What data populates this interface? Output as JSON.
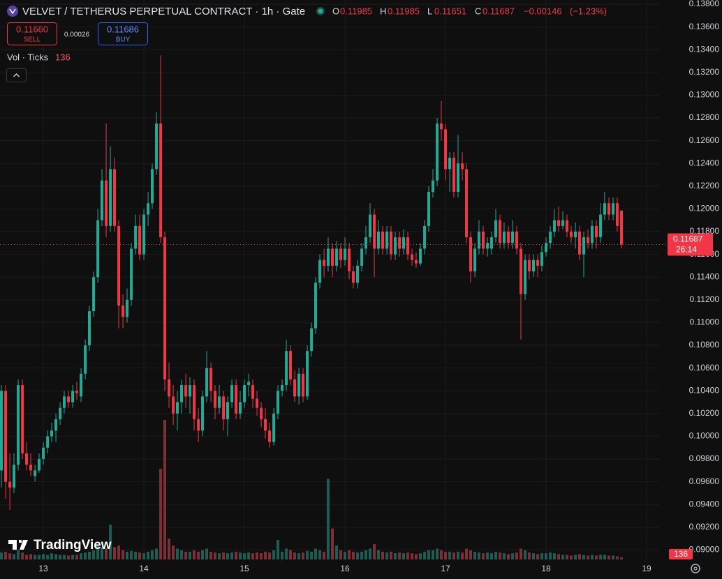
{
  "chart_data": {
    "type": "candlestick",
    "title": "VELVET / TETHERUS PERPETUAL CONTRACT · 1h · Gate",
    "ohlc_labels": [
      "O",
      "H",
      "L",
      "C"
    ],
    "change": {
      "value": -0.00146,
      "label": "−0.00146"
    },
    "change_percent": {
      "value": -1.23,
      "label": "(−1.23%)"
    },
    "sell": {
      "value": 0.1166,
      "label": "0.11660"
    },
    "sell_label": "SELL",
    "spread": 0.00026,
    "buy": 0.11686,
    "buy_label": "BUY",
    "volume_label": "Vol · Ticks",
    "countdown": "26:14",
    "brand": "TradingView",
    "colors": {
      "up": "#22ab94",
      "down": "#f23645",
      "volume_up": "#1e5c54",
      "volume_down": "#7d2f36"
    },
    "grid": true,
    "xlim": [
      12.569,
      19.132
    ],
    "ylim": [
      0.08929,
      0.13837
    ],
    "xticks": [
      13,
      14,
      15,
      16,
      17,
      18,
      19
    ],
    "yticks": [
      {
        "value": 0.138,
        "label": "0.13800"
      },
      {
        "value": 0.136,
        "label": "0.13600"
      },
      {
        "value": 0.134,
        "label": "0.13400"
      },
      {
        "value": 0.132,
        "label": "0.13200"
      },
      {
        "value": 0.13,
        "label": "0.13000"
      },
      {
        "value": 0.128,
        "label": "0.12800"
      },
      {
        "value": 0.126,
        "label": "0.12600"
      },
      {
        "value": 0.124,
        "label": "0.12400"
      },
      {
        "value": 0.122,
        "label": "0.12200"
      },
      {
        "value": 0.12,
        "label": "0.12000"
      },
      {
        "value": 0.118,
        "label": "0.11800"
      },
      {
        "value": 0.116,
        "label": "0.11600"
      },
      {
        "value": 0.114,
        "label": "0.11400"
      },
      {
        "value": 0.112,
        "label": "0.11200"
      },
      {
        "value": 0.11,
        "label": "0.11000"
      },
      {
        "value": 0.108,
        "label": "0.10800"
      },
      {
        "value": 0.106,
        "label": "0.10600"
      },
      {
        "value": 0.104,
        "label": "0.10400"
      },
      {
        "value": 0.102,
        "label": "0.10200"
      },
      {
        "value": 0.1,
        "label": "0.10000"
      },
      {
        "value": 0.098,
        "label": "0.09800"
      },
      {
        "value": 0.096,
        "label": "0.09600"
      },
      {
        "value": 0.094,
        "label": "0.09400"
      },
      {
        "value": 0.092,
        "label": "0.09200"
      },
      {
        "value": 0.09,
        "label": "0.09000"
      }
    ],
    "x": [
      12.583,
      12.625,
      12.667,
      12.708,
      12.75,
      12.792,
      12.833,
      12.875,
      12.917,
      12.958,
      13,
      13.042,
      13.083,
      13.125,
      13.167,
      13.208,
      13.25,
      13.292,
      13.333,
      13.375,
      13.417,
      13.458,
      13.5,
      13.542,
      13.583,
      13.625,
      13.667,
      13.708,
      13.75,
      13.792,
      13.833,
      13.875,
      13.917,
      13.958,
      14,
      14.042,
      14.083,
      14.125,
      14.167,
      14.208,
      14.25,
      14.292,
      14.333,
      14.375,
      14.417,
      14.458,
      14.5,
      14.542,
      14.583,
      14.625,
      14.667,
      14.708,
      14.75,
      14.792,
      14.833,
      14.875,
      14.917,
      14.958,
      15,
      15.042,
      15.083,
      15.125,
      15.167,
      15.208,
      15.25,
      15.292,
      15.333,
      15.375,
      15.417,
      15.458,
      15.5,
      15.542,
      15.583,
      15.625,
      15.667,
      15.708,
      15.75,
      15.792,
      15.833,
      15.875,
      15.917,
      15.958,
      16,
      16.042,
      16.083,
      16.125,
      16.167,
      16.208,
      16.25,
      16.292,
      16.333,
      16.375,
      16.417,
      16.458,
      16.5,
      16.542,
      16.583,
      16.625,
      16.667,
      16.708,
      16.75,
      16.792,
      16.833,
      16.875,
      16.917,
      16.958,
      17,
      17.042,
      17.083,
      17.125,
      17.167,
      17.208,
      17.25,
      17.292,
      17.333,
      17.375,
      17.417,
      17.458,
      17.5,
      17.542,
      17.583,
      17.625,
      17.667,
      17.708,
      17.75,
      17.792,
      17.833,
      17.875,
      17.917,
      17.958,
      18,
      18.042,
      18.083,
      18.125,
      18.167,
      18.208,
      18.25,
      18.292,
      18.333,
      18.375,
      18.417,
      18.458,
      18.5,
      18.542,
      18.583,
      18.625,
      18.667,
      18.708,
      18.75
    ],
    "open": [
      0.097,
      0.104,
      0.096,
      0.0955,
      0.0975,
      0.1045,
      0.0985,
      0.0975,
      0.0965,
      0.097,
      0.098,
      0.099,
      0.1,
      0.1005,
      0.1015,
      0.1025,
      0.1035,
      0.103,
      0.104,
      0.1035,
      0.1055,
      0.108,
      0.111,
      0.114,
      0.119,
      0.1225,
      0.1185,
      0.1235,
      0.1185,
      0.1115,
      0.1105,
      0.112,
      0.1165,
      0.1185,
      0.116,
      0.1195,
      0.1205,
      0.1235,
      0.1275,
      0.1175,
      0.105,
      0.1035,
      0.102,
      0.103,
      0.1045,
      0.1035,
      0.1045,
      0.1015,
      0.1005,
      0.1035,
      0.106,
      0.104,
      0.1025,
      0.1035,
      0.1015,
      0.103,
      0.1045,
      0.102,
      0.103,
      0.1045,
      0.1045,
      0.1033,
      0.1025,
      0.1015,
      0.1005,
      0.0995,
      0.102,
      0.104,
      0.1045,
      0.1075,
      0.105,
      0.1035,
      0.1055,
      0.1035,
      0.1075,
      0.1095,
      0.1135,
      0.1155,
      0.115,
      0.1165,
      0.115,
      0.1165,
      0.1155,
      0.1165,
      0.1145,
      0.1135,
      0.115,
      0.1165,
      0.1175,
      0.1195,
      0.1165,
      0.118,
      0.1165,
      0.118,
      0.116,
      0.1175,
      0.1165,
      0.1175,
      0.116,
      0.1155,
      0.1152,
      0.1165,
      0.1185,
      0.1215,
      0.1225,
      0.1275,
      0.127,
      0.1235,
      0.1245,
      0.1215,
      0.124,
      0.1235,
      0.1175,
      0.1145,
      0.1165,
      0.118,
      0.1165,
      0.1165,
      0.1175,
      0.119,
      0.117,
      0.118,
      0.117,
      0.118,
      0.1165,
      0.1125,
      0.1155,
      0.1145,
      0.1155,
      0.115,
      0.1162,
      0.117,
      0.118,
      0.119,
      0.1185,
      0.119,
      0.118,
      0.1175,
      0.118,
      0.116,
      0.1175,
      0.117,
      0.1185,
      0.1175,
      0.1195,
      0.1205,
      0.1195,
      0.1205,
      0.11985
    ],
    "high": [
      0.1045,
      0.1045,
      0.0985,
      0.0985,
      0.105,
      0.105,
      0.0995,
      0.0985,
      0.0975,
      0.0985,
      0.0995,
      0.1005,
      0.1012,
      0.102,
      0.103,
      0.104,
      0.104,
      0.1045,
      0.1048,
      0.106,
      0.1085,
      0.1115,
      0.1145,
      0.12,
      0.1235,
      0.1275,
      0.1255,
      0.1245,
      0.119,
      0.1125,
      0.113,
      0.117,
      0.1195,
      0.1195,
      0.12,
      0.1215,
      0.124,
      0.1285,
      0.1335,
      0.118,
      0.1065,
      0.1045,
      0.104,
      0.105,
      0.1055,
      0.1052,
      0.105,
      0.1025,
      0.104,
      0.1075,
      0.1065,
      0.1045,
      0.1045,
      0.104,
      0.1035,
      0.105,
      0.105,
      0.104,
      0.105,
      0.1055,
      0.105,
      0.104,
      0.103,
      0.1025,
      0.1012,
      0.1025,
      0.1045,
      0.105,
      0.1085,
      0.108,
      0.1058,
      0.106,
      0.106,
      0.108,
      0.11,
      0.114,
      0.116,
      0.1165,
      0.1175,
      0.117,
      0.1172,
      0.117,
      0.1175,
      0.117,
      0.115,
      0.1155,
      0.117,
      0.1185,
      0.1205,
      0.12,
      0.119,
      0.1185,
      0.1185,
      0.1185,
      0.118,
      0.118,
      0.1182,
      0.118,
      0.1165,
      0.1162,
      0.117,
      0.119,
      0.122,
      0.1235,
      0.128,
      0.1295,
      0.1275,
      0.125,
      0.125,
      0.1265,
      0.125,
      0.124,
      0.118,
      0.117,
      0.119,
      0.1185,
      0.1175,
      0.118,
      0.12,
      0.1195,
      0.1188,
      0.1185,
      0.119,
      0.1185,
      0.117,
      0.116,
      0.116,
      0.116,
      0.116,
      0.1168,
      0.1175,
      0.1185,
      0.12,
      0.1202,
      0.1198,
      0.1195,
      0.1185,
      0.1188,
      0.1185,
      0.118,
      0.1182,
      0.119,
      0.119,
      0.1205,
      0.1215,
      0.121,
      0.121,
      0.121,
      0.11985
    ],
    "low": [
      0.0955,
      0.0945,
      0.0935,
      0.095,
      0.097,
      0.098,
      0.097,
      0.0965,
      0.096,
      0.0968,
      0.0975,
      0.0985,
      0.0995,
      0.0995,
      0.101,
      0.102,
      0.1025,
      0.1025,
      0.1032,
      0.103,
      0.105,
      0.1075,
      0.1105,
      0.1135,
      0.1185,
      0.1175,
      0.118,
      0.118,
      0.1095,
      0.1095,
      0.11,
      0.1115,
      0.116,
      0.1155,
      0.1155,
      0.1185,
      0.12,
      0.123,
      0.117,
      0.104,
      0.1025,
      0.101,
      0.1005,
      0.102,
      0.1025,
      0.102,
      0.1005,
      0.0995,
      0.1,
      0.103,
      0.103,
      0.1015,
      0.102,
      0.1005,
      0.1,
      0.1025,
      0.1015,
      0.1015,
      0.1025,
      0.1035,
      0.1025,
      0.1018,
      0.1008,
      0.0998,
      0.099,
      0.0992,
      0.1015,
      0.1035,
      0.104,
      0.1045,
      0.103,
      0.1028,
      0.103,
      0.1032,
      0.107,
      0.109,
      0.113,
      0.114,
      0.1145,
      0.114,
      0.1145,
      0.1148,
      0.115,
      0.1138,
      0.113,
      0.113,
      0.1145,
      0.116,
      0.117,
      0.114,
      0.116,
      0.116,
      0.116,
      0.1155,
      0.1155,
      0.1158,
      0.116,
      0.1155,
      0.115,
      0.1148,
      0.115,
      0.116,
      0.118,
      0.121,
      0.122,
      0.126,
      0.1225,
      0.1215,
      0.121,
      0.121,
      0.1225,
      0.117,
      0.1135,
      0.114,
      0.116,
      0.116,
      0.1158,
      0.116,
      0.117,
      0.1165,
      0.1165,
      0.1165,
      0.1165,
      0.116,
      0.1085,
      0.112,
      0.1138,
      0.114,
      0.114,
      0.1145,
      0.1158,
      0.1165,
      0.1175,
      0.118,
      0.1182,
      0.1175,
      0.117,
      0.1165,
      0.1155,
      0.114,
      0.1165,
      0.1165,
      0.1165,
      0.117,
      0.119,
      0.119,
      0.119,
      0.118,
      0.11651
    ],
    "close": [
      0.104,
      0.096,
      0.0955,
      0.0975,
      0.1045,
      0.0985,
      0.0975,
      0.097,
      0.097,
      0.098,
      0.099,
      0.1,
      0.1005,
      0.1015,
      0.1025,
      0.1035,
      0.103,
      0.104,
      0.1038,
      0.1055,
      0.108,
      0.111,
      0.114,
      0.119,
      0.1225,
      0.1185,
      0.1235,
      0.1185,
      0.1115,
      0.1105,
      0.112,
      0.1165,
      0.1185,
      0.116,
      0.1195,
      0.1205,
      0.1235,
      0.1275,
      0.1175,
      0.105,
      0.1035,
      0.102,
      0.103,
      0.1045,
      0.1035,
      0.1045,
      0.1015,
      0.1005,
      0.1035,
      0.106,
      0.104,
      0.1025,
      0.1035,
      0.1015,
      0.103,
      0.1045,
      0.102,
      0.103,
      0.1045,
      0.1048,
      0.1033,
      0.1025,
      0.1015,
      0.1005,
      0.0995,
      0.102,
      0.104,
      0.1045,
      0.1075,
      0.105,
      0.1035,
      0.1055,
      0.1035,
      0.1075,
      0.1095,
      0.1135,
      0.1155,
      0.115,
      0.1165,
      0.115,
      0.1165,
      0.1155,
      0.1165,
      0.1145,
      0.1135,
      0.115,
      0.1165,
      0.1175,
      0.1195,
      0.1165,
      0.118,
      0.1165,
      0.118,
      0.116,
      0.1175,
      0.1165,
      0.1175,
      0.116,
      0.1155,
      0.1152,
      0.1165,
      0.1185,
      0.1215,
      0.1225,
      0.1275,
      0.127,
      0.1235,
      0.1245,
      0.1215,
      0.124,
      0.1235,
      0.1175,
      0.1145,
      0.1165,
      0.118,
      0.1165,
      0.117,
      0.1175,
      0.119,
      0.117,
      0.118,
      0.117,
      0.118,
      0.1165,
      0.1125,
      0.1155,
      0.1145,
      0.1155,
      0.115,
      0.1162,
      0.117,
      0.118,
      0.119,
      0.1185,
      0.119,
      0.118,
      0.1175,
      0.118,
      0.116,
      0.1175,
      0.117,
      0.1185,
      0.1175,
      0.1195,
      0.1205,
      0.1195,
      0.1205,
      0.1185,
      0.11687
    ],
    "volume": [
      450,
      500,
      400,
      350,
      600,
      450,
      300,
      350,
      300,
      300,
      350,
      300,
      400,
      350,
      300,
      300,
      250,
      300,
      300,
      400,
      450,
      500,
      600,
      900,
      800,
      700,
      2250,
      800,
      900,
      600,
      500,
      550,
      500,
      450,
      400,
      500,
      600,
      700,
      5850,
      9000,
      1350,
      900,
      700,
      600,
      500,
      500,
      600,
      500,
      600,
      700,
      500,
      450,
      400,
      450,
      400,
      450,
      500,
      450,
      400,
      450,
      400,
      450,
      400,
      500,
      450,
      600,
      1260,
      500,
      700,
      600,
      450,
      400,
      450,
      550,
      500,
      700,
      600,
      500,
      5200,
      2000,
      900,
      600,
      500,
      600,
      500,
      450,
      500,
      600,
      700,
      1000,
      600,
      500,
      450,
      500,
      400,
      450,
      400,
      450,
      400,
      350,
      400,
      500,
      600,
      600,
      700,
      600,
      500,
      500,
      450,
      500,
      450,
      700,
      600,
      500,
      450,
      400,
      450,
      400,
      500,
      450,
      400,
      350,
      400,
      450,
      700,
      600,
      450,
      400,
      350,
      400,
      400,
      450,
      400,
      350,
      300,
      300,
      250,
      300,
      350,
      300,
      250,
      300,
      250,
      300,
      300,
      250,
      250,
      200,
      136
    ]
  }
}
